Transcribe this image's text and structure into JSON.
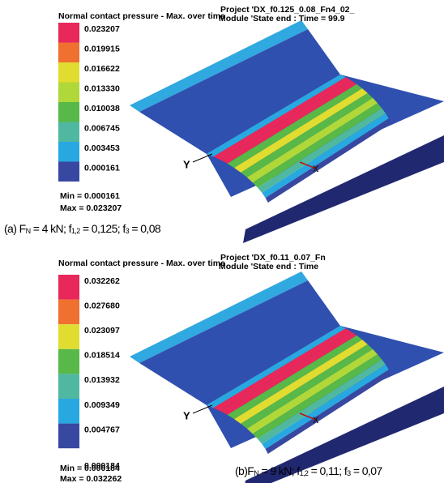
{
  "panels": [
    {
      "title": "Normal contact pressure - Max. over time",
      "project": "Project 'DX_f0.125_0.08_Fn4_02_",
      "module": "Module 'State end : Time = 99.9",
      "legend": [
        "0.023207",
        "0.019915",
        "0.016622",
        "0.013330",
        "0.010038",
        "0.006745",
        "0.003453",
        "0.000161"
      ],
      "min": "Min = 0.000161",
      "max": "Max = 0.023207",
      "axis_y": "Y",
      "axis_x": "X",
      "caption": [
        {
          "text": "(a) F"
        },
        {
          "text": "N",
          "sub": true
        },
        {
          "text": " = 4 kN; f"
        },
        {
          "text": "1,2",
          "sub": true
        },
        {
          "text": " = 0,125; f"
        },
        {
          "text": "3",
          "sub": true
        },
        {
          "text": " = 0,08"
        }
      ]
    },
    {
      "title": "Normal contact pressure - Max. over time",
      "project": "Project 'DX_f0.11_0.07_Fn",
      "module": "Module 'State end : Time",
      "legend": [
        "0.032262",
        "0.027680",
        "0.023097",
        "0.018514",
        "0.013932",
        "0.009349",
        "0.004767",
        "0.000184"
      ],
      "min": "Min = 0.000184",
      "max": "Max = 0.032262",
      "axis_y": "Y",
      "axis_x": "X",
      "caption": [
        {
          "text": "(b)F"
        },
        {
          "text": "N",
          "sub": true
        },
        {
          "text": " = 9 kN; f"
        },
        {
          "text": "1,2",
          "sub": true
        },
        {
          "text": " = 0,11; f"
        },
        {
          "text": "3",
          "sub": true
        },
        {
          "text": " = 0,07"
        }
      ]
    }
  ]
}
